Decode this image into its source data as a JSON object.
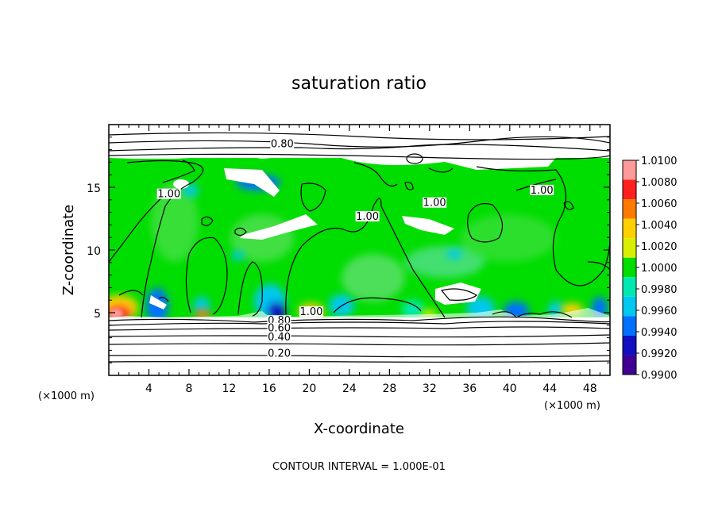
{
  "chart_data": {
    "type": "heatmap",
    "title": "saturation ratio",
    "xlabel": "X-coordinate",
    "ylabel": "Z-coordinate",
    "x_unit": "(×1000 m)",
    "y_unit": "(×1000 m)",
    "xlim": [
      0,
      50
    ],
    "ylim": [
      0,
      20
    ],
    "x_ticks": [
      4,
      8,
      12,
      16,
      20,
      24,
      28,
      32,
      36,
      40,
      44,
      48
    ],
    "y_ticks": [
      5,
      10,
      15
    ],
    "colorbar": {
      "labels": [
        "1.0100",
        "1.0080",
        "1.0060",
        "1.0040",
        "1.0020",
        "1.0000",
        "0.9980",
        "0.9960",
        "0.9940",
        "0.9920",
        "0.9900"
      ],
      "colors": [
        "#ff9a9a",
        "#ff2020",
        "#ff7a00",
        "#ffd000",
        "#d8f000",
        "#00dd00",
        "#00e8b0",
        "#00c8f0",
        "#0070ff",
        "#1010c0",
        "#400090"
      ]
    },
    "contour_labels": [
      {
        "text": "0.80",
        "x": 17.3,
        "z": 18.2
      },
      {
        "text": "1.00",
        "x": 6.0,
        "z": 14.2
      },
      {
        "text": "1.00",
        "x": 25.8,
        "z": 12.4
      },
      {
        "text": "1.00",
        "x": 32.5,
        "z": 13.5
      },
      {
        "text": "1.00",
        "x": 43.2,
        "z": 14.5
      },
      {
        "text": "1.00",
        "x": 20.2,
        "z": 4.8
      },
      {
        "text": "0.80",
        "x": 17.0,
        "z": 4.1
      },
      {
        "text": "0.60",
        "x": 17.0,
        "z": 3.5
      },
      {
        "text": "0.40",
        "x": 17.0,
        "z": 2.8
      },
      {
        "text": "0.20",
        "x": 17.0,
        "z": 1.5
      }
    ],
    "footer": "CONTOUR INTERVAL = 1.000E-01"
  }
}
